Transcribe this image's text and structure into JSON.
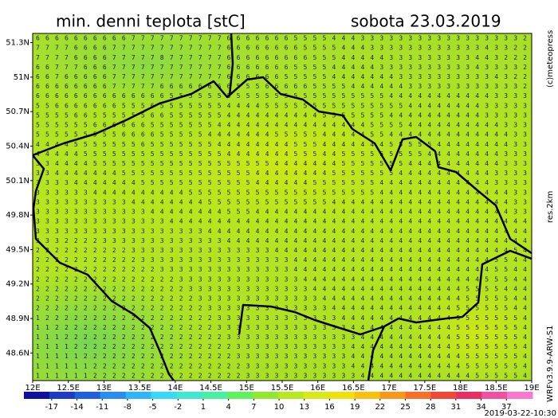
{
  "header": {
    "title": "min. denni teplota [stC]",
    "date": "sobota 23.03.2019",
    "credit": "(c)meteopress",
    "resolution": "res.2km",
    "model": "WRFv3.9.9-ARW-S1",
    "run": "2019-03-22-10:30"
  },
  "map": {
    "xlim": [
      12,
      19
    ],
    "ylim": [
      48.36,
      51.38
    ],
    "lon_ticks": [
      {
        "value": 12,
        "label": "12E"
      },
      {
        "value": 12.5,
        "label": "12.5E"
      },
      {
        "value": 13,
        "label": "13E"
      },
      {
        "value": 13.5,
        "label": "13.5E"
      },
      {
        "value": 14,
        "label": "14E"
      },
      {
        "value": 14.5,
        "label": "14.5E"
      },
      {
        "value": 15,
        "label": "15E"
      },
      {
        "value": 15.5,
        "label": "15.5E"
      },
      {
        "value": 16,
        "label": "16E"
      },
      {
        "value": 16.5,
        "label": "16.5E"
      },
      {
        "value": 17,
        "label": "17E"
      },
      {
        "value": 17.5,
        "label": "17.5E"
      },
      {
        "value": 18,
        "label": "18E"
      },
      {
        "value": 18.5,
        "label": "18.5E"
      },
      {
        "value": 19,
        "label": "19E"
      }
    ],
    "lat_ticks": [
      {
        "value": 51.3,
        "label": "51.3N"
      },
      {
        "value": 51,
        "label": "51N"
      },
      {
        "value": 50.7,
        "label": "50.7N"
      },
      {
        "value": 50.4,
        "label": "50.4N"
      },
      {
        "value": 50.1,
        "label": "50.1N"
      },
      {
        "value": 49.8,
        "label": "49.8N"
      },
      {
        "value": 49.5,
        "label": "49.5N"
      },
      {
        "value": 49.2,
        "label": "49.2N"
      },
      {
        "value": 48.9,
        "label": "48.9N"
      },
      {
        "value": 48.6,
        "label": "48.6N"
      }
    ],
    "rows": [
      "6666666666777777777766666665555444333333333333333332",
      "7777666677777777777766666666555544433333333333343322",
      "7777666677777877777766666666655544444333333333443222",
      "6677766677777777777766666665555444443333333333433332",
      "6676666677777777777766666655555444444433333333334322",
      "6666666677777666666665556666655554444443333333333332",
      "6666666666666655555555555555555555555444444444443333",
      "5566666665556555555544445555555555555554444444433333",
      "5555665555556655555544444444445555555444444444433333",
      "5555556666665555555444444444444444455554444444444333",
      "5555555556666555554444444555554444455444444444444433",
      "4444555555565555555444444445554444444555554444444433",
      "4444455555555555555544444445554455555555544444444333",
      "3344445555555555555555555444444455555554444444444333",
      "3344444445555555555555544444444555555544444444443333",
      "3333444444455555555555544444455555554444444444443333",
      "3333334444444444555555555555555555554444444444444433",
      "3333333333444444445555555555555444444444444444444433",
      "3333333333334444444455544444444444444444444444444433",
      "3333333333333344444444444444444444444444444444444444",
      "3333333333333333334444444444444444444444444444444444",
      "3332222333333333333344444444444444444444444444444444",
      "2222222222333333333333333444444444444444444444444454",
      "2222222222233333333333333334444444444444444444445544",
      "2222222222222333333333333334444444444444444444445544",
      "2222222222222223333333333333444444444444444444455544",
      "2222222222222222333333333333344444444444444445555444",
      "2222222222222222233333333333334444444444444445555544",
      "2222222222222222223333333333333444444444444455555544",
      "1222222222222222222333333333333344444444444455555554",
      "1122222222222222222333333333333334444444444455555554",
      "1112222222222222222233333333333333444444444455555554",
      "1111222222222222222223333333333334444444444455555554",
      "1111122222222222222223333333333334444444444445555554",
      "1111112222222222222222333333333334444444444445555554",
      "1111112222222222222222333333333333444444444444555554"
    ]
  },
  "colorbar": {
    "range": [
      -20.3,
      40.1
    ],
    "ticks": [
      -17,
      -14,
      -11,
      -8,
      -5,
      -2,
      1,
      4,
      7,
      10,
      13,
      16,
      19,
      22,
      25,
      28,
      31,
      34,
      37
    ],
    "colors": [
      "#1010a0",
      "#1c3cc8",
      "#2060e0",
      "#2a8cf0",
      "#30b4f8",
      "#38d8f8",
      "#40e8d0",
      "#48f0a0",
      "#60f060",
      "#90e830",
      "#b8e820",
      "#d8e818",
      "#f0e010",
      "#f8c010",
      "#f89818",
      "#f87028",
      "#f04838",
      "#e83060",
      "#f050a0",
      "#f878d0"
    ]
  }
}
